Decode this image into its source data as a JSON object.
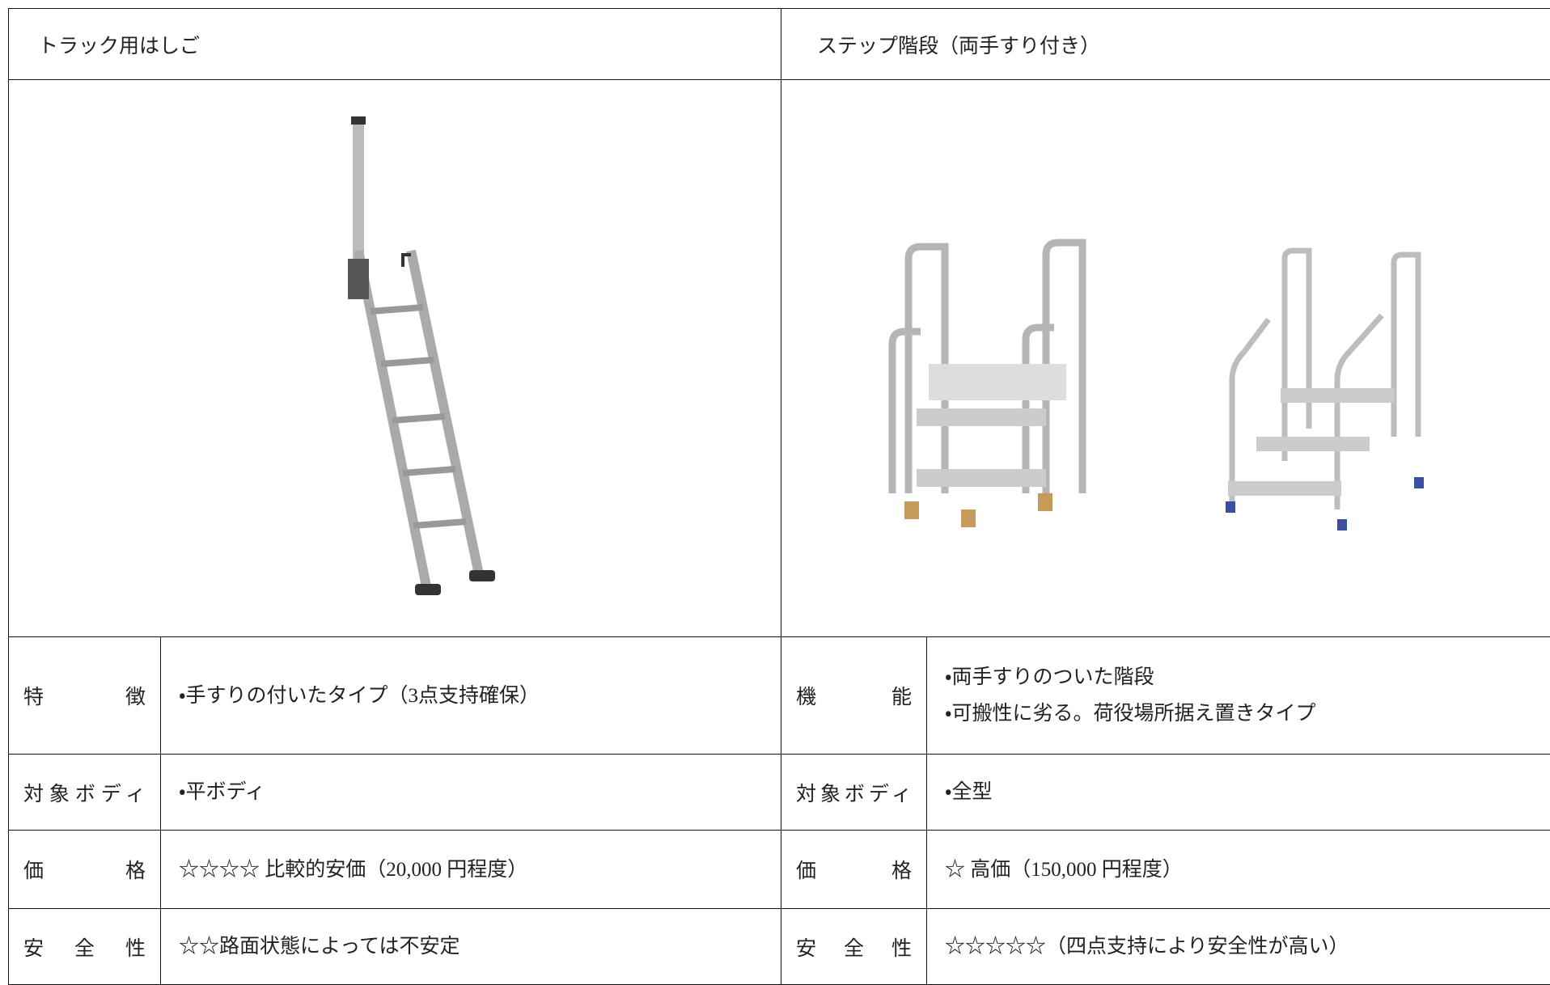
{
  "table": {
    "columns": [
      {
        "title": "トラック用はしご",
        "rows": [
          {
            "label": "特徴",
            "lines": [
              "・手すりの付いたタイプ（3点支持確保）"
            ]
          },
          {
            "label": "対象ボディ",
            "lines": [
              "・平ボディ"
            ]
          },
          {
            "label": "価格",
            "lines": [
              "☆☆☆☆ 比較的安価（20,000 円程度）"
            ]
          },
          {
            "label": "安全性",
            "lines": [
              "☆☆路面状態によっては不安定"
            ]
          }
        ]
      },
      {
        "title": "ステップ階段（両手すり付き）",
        "rows": [
          {
            "label": "機能",
            "lines": [
              "・両手すりのついた階段",
              "・可搬性に劣る。荷役場所据え置きタイプ"
            ]
          },
          {
            "label": "対象ボディ",
            "lines": [
              "・全型"
            ]
          },
          {
            "label": "価格",
            "lines": [
              "☆ 高価（150,000 円程度）"
            ]
          },
          {
            "label": "安全性",
            "lines": [
              "☆☆☆☆☆（四点支持により安全性が高い）"
            ]
          }
        ]
      }
    ]
  }
}
